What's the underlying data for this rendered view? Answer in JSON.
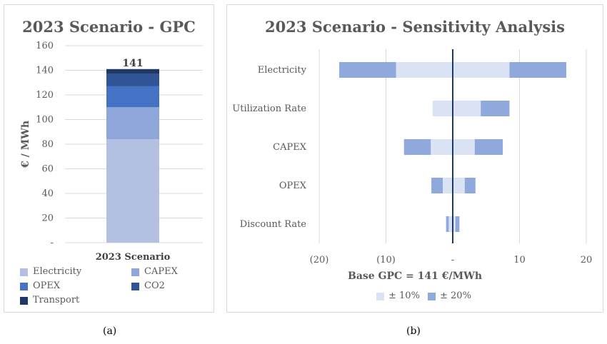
{
  "captions": {
    "a": "(a)",
    "b": "(b)"
  },
  "chart_data": [
    {
      "type": "bar",
      "stacked": true,
      "title": "2023 Scenario - GPC",
      "ylabel": "€ / MWh",
      "ylim": [
        0,
        160
      ],
      "yticks": [
        "-",
        "20",
        "40",
        "60",
        "80",
        "100",
        "120",
        "140",
        "160"
      ],
      "categories": [
        "2023 Scenario"
      ],
      "total_label": "141",
      "series": [
        {
          "name": "Electricity",
          "values": [
            84
          ],
          "color": "#b4c0e2"
        },
        {
          "name": "CAPEX",
          "values": [
            26
          ],
          "color": "#8fa6da"
        },
        {
          "name": "OPEX",
          "values": [
            17
          ],
          "color": "#4472c4"
        },
        {
          "name": "CO2",
          "values": [
            10
          ],
          "color": "#2f5597"
        },
        {
          "name": "Transport",
          "values": [
            4
          ],
          "color": "#203864"
        }
      ],
      "legend": "bottom",
      "grid": true
    },
    {
      "type": "bar",
      "orientation": "horizontal",
      "subtype": "tornado",
      "title": "2023 Scenario - Sensitivity Analysis",
      "xlabel": "Base GPC = 141 €/MWh",
      "xlim": [
        -20,
        20
      ],
      "xticks": [
        "(20)",
        "(10)",
        "-",
        "10",
        "20"
      ],
      "categories": [
        "Electricity",
        "Utilization Rate",
        "CAPEX",
        "OPEX",
        "Discount Rate"
      ],
      "series": [
        {
          "name": "± 10%",
          "color": "#dae3f3",
          "ranges": [
            [
              -8.5,
              8.5
            ],
            [
              -3,
              4.2
            ],
            [
              -3.3,
              3.3
            ],
            [
              -1.5,
              1.8
            ],
            [
              -0.6,
              0.4
            ]
          ]
        },
        {
          "name": "± 20%",
          "color": "#8fa9dc",
          "ranges": [
            [
              -17,
              17
            ],
            [
              -3,
              8.5
            ],
            [
              -7.3,
              7.5
            ],
            [
              -3.2,
              3.4
            ],
            [
              -1,
              1
            ]
          ]
        }
      ],
      "base_line": 0,
      "legend": "bottom",
      "grid": true
    }
  ]
}
